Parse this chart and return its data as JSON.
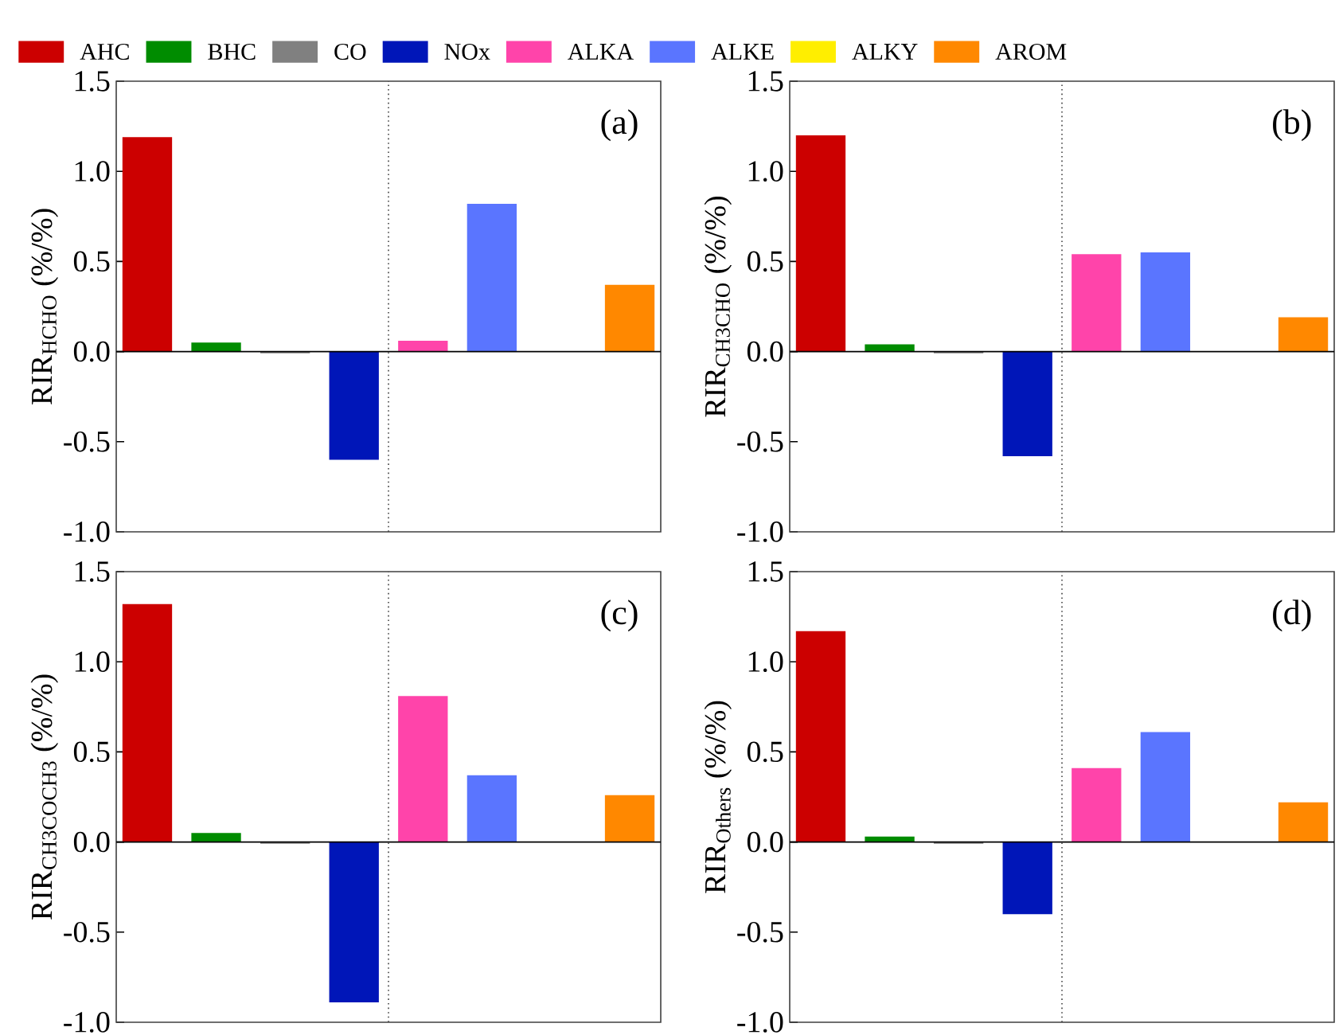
{
  "chart_data": [
    {
      "type": "bar",
      "title": "(a)",
      "ylabel": "RIR$_{HCHO}$ (%/%)",
      "categories": [
        null,
        null,
        null,
        null,
        null,
        null,
        null,
        null
      ],
      "ylim": [
        -1.0,
        1.5
      ],
      "yticks": [
        {
          "value": -1.0,
          "label": "-1.0"
        },
        {
          "value": -0.5,
          "label": "-0.5"
        },
        {
          "value": 0.0,
          "label": "0.0"
        },
        {
          "value": 0.5,
          "label": "0.5"
        },
        {
          "value": 1.0,
          "label": "1.0"
        },
        {
          "value": 1.5,
          "label": "1.5"
        }
      ],
      "grid": false,
      "legend": "top",
      "series": [
        {
          "name": "AHC",
          "color": "#cc0000",
          "values": [
            1.19,
            null,
            null,
            null,
            null,
            null,
            null,
            null
          ]
        },
        {
          "name": "BHC",
          "color": "#008c00",
          "values": [
            null,
            0.05,
            null,
            null,
            null,
            null,
            null,
            null
          ]
        },
        {
          "name": "CO",
          "color": "#808080",
          "values": [
            null,
            null,
            -0.01,
            null,
            null,
            null,
            null,
            null
          ]
        },
        {
          "name": "NOx",
          "color": "#0016b8",
          "values": [
            null,
            null,
            null,
            -0.6,
            null,
            null,
            null,
            null
          ]
        },
        {
          "name": "ALKA",
          "color": "#ff44aa",
          "values": [
            null,
            null,
            null,
            null,
            0.06,
            null,
            null,
            null
          ]
        },
        {
          "name": "ALKE",
          "color": "#5a75ff",
          "values": [
            null,
            null,
            null,
            null,
            null,
            0.82,
            null,
            null
          ]
        },
        {
          "name": "ALKY",
          "color": "#ffee00",
          "values": [
            null,
            null,
            null,
            null,
            null,
            null,
            0,
            null
          ]
        },
        {
          "name": "AROM",
          "color": "#ff8800",
          "values": [
            null,
            null,
            null,
            null,
            null,
            null,
            null,
            0.37
          ]
        }
      ]
    },
    {
      "type": "bar",
      "title": "(b)",
      "ylabel": "RIR$_{CH3CHO}$ (%/%)",
      "categories": [
        null,
        null,
        null,
        null,
        null,
        null,
        null,
        null
      ],
      "ylim": [
        -1.0,
        1.5
      ],
      "yticks": [
        {
          "value": -1.0,
          "label": "-1.0"
        },
        {
          "value": -0.5,
          "label": "-0.5"
        },
        {
          "value": 0.0,
          "label": "0.0"
        },
        {
          "value": 0.5,
          "label": "0.5"
        },
        {
          "value": 1.0,
          "label": "1.0"
        },
        {
          "value": 1.5,
          "label": "1.5"
        }
      ],
      "grid": false,
      "series": [
        {
          "color": "#cc0000",
          "values": [
            1.2,
            null,
            null,
            null,
            null,
            null,
            null,
            null
          ]
        },
        {
          "color": "#008c00",
          "values": [
            null,
            0.04,
            null,
            null,
            null,
            null,
            null,
            null
          ]
        },
        {
          "color": "#808080",
          "values": [
            null,
            null,
            -0.01,
            null,
            null,
            null,
            null,
            null
          ]
        },
        {
          "color": "#0016b8",
          "values": [
            null,
            null,
            null,
            -0.58,
            null,
            null,
            null,
            null
          ]
        },
        {
          "color": "#ff44aa",
          "values": [
            null,
            null,
            null,
            null,
            0.54,
            null,
            null,
            null
          ]
        },
        {
          "color": "#5a75ff",
          "values": [
            null,
            null,
            null,
            null,
            null,
            0.55,
            null,
            null
          ]
        },
        {
          "color": "#ffee00",
          "values": [
            null,
            null,
            null,
            null,
            null,
            null,
            0,
            null
          ]
        },
        {
          "color": "#ff8800",
          "values": [
            null,
            null,
            null,
            null,
            null,
            null,
            null,
            0.19
          ]
        }
      ]
    },
    {
      "type": "bar",
      "title": "(c)",
      "ylabel": "RIR$_{CH3COCH3}$ (%/%)",
      "categories": [
        null,
        null,
        null,
        null,
        null,
        null,
        null,
        null
      ],
      "ylim": [
        -1.0,
        1.5
      ],
      "yticks": [
        {
          "value": -1.0,
          "label": "-1.0"
        },
        {
          "value": -0.5,
          "label": "-0.5"
        },
        {
          "value": 0.0,
          "label": "0.0"
        },
        {
          "value": 0.5,
          "label": "0.5"
        },
        {
          "value": 1.0,
          "label": "1.0"
        },
        {
          "value": 1.5,
          "label": "1.5"
        }
      ],
      "grid": false,
      "series": [
        {
          "color": "#cc0000",
          "values": [
            1.32,
            null,
            null,
            null,
            null,
            null,
            null,
            null
          ]
        },
        {
          "color": "#008c00",
          "values": [
            null,
            0.05,
            null,
            null,
            null,
            null,
            null,
            null
          ]
        },
        {
          "color": "#808080",
          "values": [
            null,
            null,
            -0.01,
            null,
            null,
            null,
            null,
            null
          ]
        },
        {
          "color": "#0016b8",
          "values": [
            null,
            null,
            null,
            -0.89,
            null,
            null,
            null,
            null
          ]
        },
        {
          "color": "#ff44aa",
          "values": [
            null,
            null,
            null,
            null,
            0.81,
            null,
            null,
            null
          ]
        },
        {
          "color": "#5a75ff",
          "values": [
            null,
            null,
            null,
            null,
            null,
            0.37,
            null,
            null
          ]
        },
        {
          "color": "#ffee00",
          "values": [
            null,
            null,
            null,
            null,
            null,
            null,
            0,
            null
          ]
        },
        {
          "color": "#ff8800",
          "values": [
            null,
            null,
            null,
            null,
            null,
            null,
            null,
            0.26
          ]
        }
      ]
    },
    {
      "type": "bar",
      "title": "(d)",
      "ylabel": "RIR$_{Others}$ (%/%)",
      "categories": [
        null,
        null,
        null,
        null,
        null,
        null,
        null,
        null
      ],
      "ylim": [
        -1.0,
        1.5
      ],
      "yticks": [
        {
          "value": -1.0,
          "label": "-1.0"
        },
        {
          "value": -0.5,
          "label": "-0.5"
        },
        {
          "value": 0.0,
          "label": "0.0"
        },
        {
          "value": 0.5,
          "label": "0.5"
        },
        {
          "value": 1.0,
          "label": "1.0"
        },
        {
          "value": 1.5,
          "label": "1.5"
        }
      ],
      "grid": false,
      "series": [
        {
          "color": "#cc0000",
          "values": [
            1.17,
            null,
            null,
            null,
            null,
            null,
            null,
            null
          ]
        },
        {
          "color": "#008c00",
          "values": [
            null,
            0.03,
            null,
            null,
            null,
            null,
            null,
            null
          ]
        },
        {
          "color": "#808080",
          "values": [
            null,
            null,
            -0.01,
            null,
            null,
            null,
            null,
            null
          ]
        },
        {
          "color": "#0016b8",
          "values": [
            null,
            null,
            null,
            -0.4,
            null,
            null,
            null,
            null
          ]
        },
        {
          "color": "#ff44aa",
          "values": [
            null,
            null,
            null,
            null,
            0.41,
            null,
            null,
            null
          ]
        },
        {
          "color": "#5a75ff",
          "values": [
            null,
            null,
            null,
            null,
            null,
            0.61,
            null,
            null
          ]
        },
        {
          "color": "#ffee00",
          "values": [
            null,
            null,
            null,
            null,
            null,
            null,
            0,
            null
          ]
        },
        {
          "color": "#ff8800",
          "values": [
            null,
            null,
            null,
            null,
            null,
            null,
            null,
            0.22
          ]
        }
      ]
    }
  ]
}
